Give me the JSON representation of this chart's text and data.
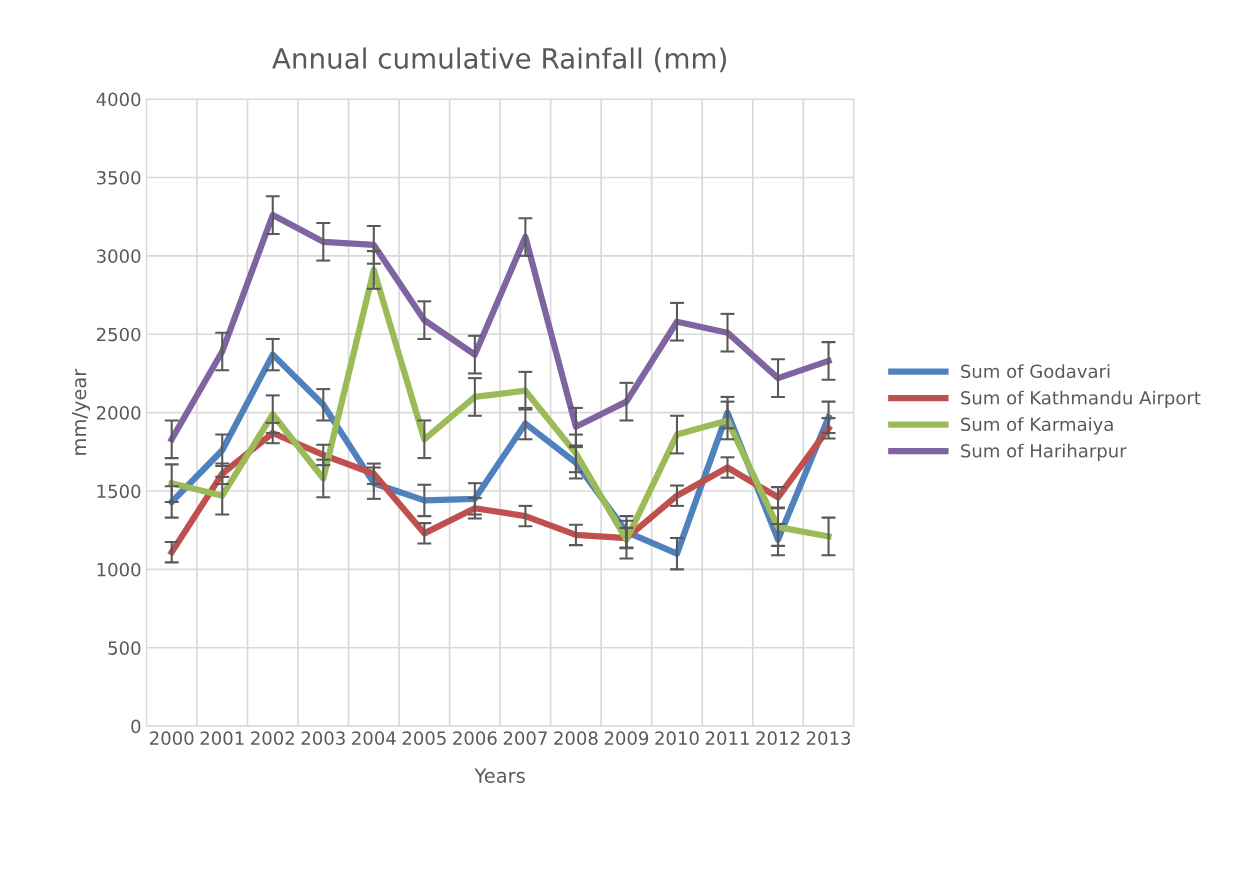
{
  "chart_data": {
    "type": "line",
    "title": "Annual cumulative Rainfall (mm)",
    "xlabel": "Years",
    "ylabel": "mm/year",
    "categories": [
      "2000",
      "2001",
      "2002",
      "2003",
      "2004",
      "2005",
      "2006",
      "2007",
      "2008",
      "2009",
      "2010",
      "2011",
      "2012",
      "2013"
    ],
    "ylim": [
      0,
      4000
    ],
    "yticks": [
      0,
      500,
      1000,
      1500,
      2000,
      2500,
      3000,
      3500,
      4000
    ],
    "grid": true,
    "legend": "right",
    "marker": "none",
    "line_style": "solid",
    "series": [
      {
        "name": "Sum of Godavari",
        "color": "#4f81bd",
        "values": [
          1430,
          1760,
          2370,
          2050,
          1550,
          1440,
          1450,
          1930,
          1680,
          1240,
          1100,
          2000,
          1190,
          1970
        ],
        "errors": [
          100,
          100,
          100,
          100,
          100,
          100,
          100,
          100,
          100,
          100,
          100,
          100,
          100,
          100
        ]
      },
      {
        "name": "Sum of Kathmandu Airport",
        "color": "#c0504d",
        "values": [
          1110,
          1610,
          1870,
          1730,
          1610,
          1230,
          1390,
          1340,
          1220,
          1200,
          1470,
          1650,
          1460,
          1900
        ],
        "errors": [
          65,
          65,
          65,
          65,
          65,
          65,
          65,
          65,
          65,
          65,
          65,
          65,
          65,
          65
        ]
      },
      {
        "name": "Sum of Karmaiya",
        "color": "#9bbb59",
        "values": [
          1550,
          1470,
          1990,
          1580,
          2910,
          1830,
          2100,
          2140,
          1740,
          1190,
          1860,
          1950,
          1270,
          1210
        ],
        "errors": [
          120,
          120,
          120,
          120,
          120,
          120,
          120,
          120,
          120,
          120,
          120,
          120,
          120,
          120
        ]
      },
      {
        "name": "Sum of Hariharpur",
        "color": "#8064a2",
        "values": [
          1830,
          2390,
          3260,
          3090,
          3070,
          2590,
          2370,
          3120,
          1910,
          2070,
          2580,
          2510,
          2220,
          2330
        ],
        "errors": [
          120,
          120,
          120,
          120,
          120,
          120,
          120,
          120,
          120,
          120,
          120,
          120,
          120,
          120
        ]
      }
    ]
  }
}
